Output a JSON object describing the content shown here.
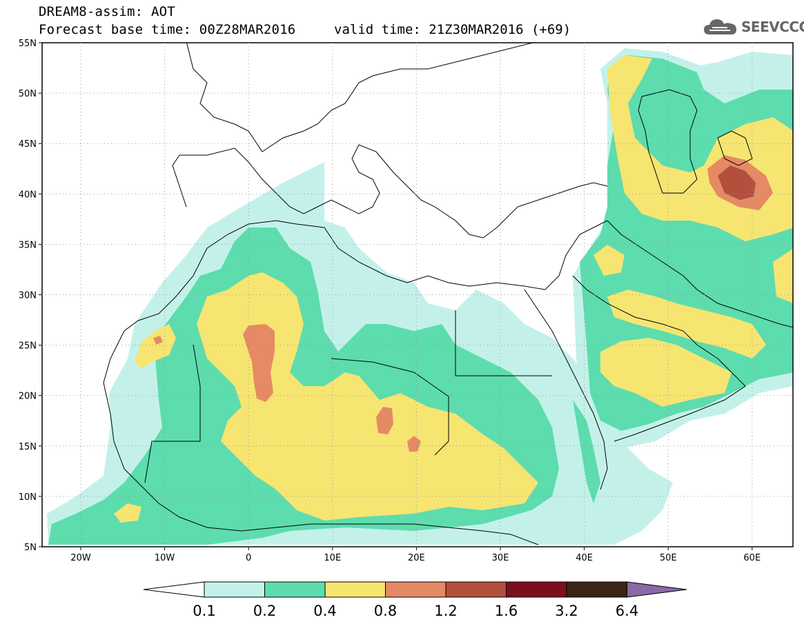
{
  "header": {
    "title_line1": "DREAM8-assim: AOT",
    "title_line2": "Forecast base time: 00Z28MAR2016",
    "valid_time": "valid time: 21Z30MAR2016 (+69)"
  },
  "logo": {
    "text": "SEEVCCC",
    "icon": "cloud-icon"
  },
  "map": {
    "lat_labels": [
      "55N",
      "50N",
      "45N",
      "40N",
      "35N",
      "30N",
      "25N",
      "20N",
      "15N",
      "10N",
      "5N"
    ],
    "lon_labels": [
      "20W",
      "10W",
      "0",
      "10E",
      "20E",
      "30E",
      "40E",
      "50E",
      "60E"
    ]
  },
  "colorbar": {
    "labels": [
      "0.1",
      "0.2",
      "0.4",
      "0.8",
      "1.2",
      "1.6",
      "3.2",
      "6.4"
    ],
    "colors": [
      "#c3f1ea",
      "#5ddcae",
      "#f6e571",
      "#e58a64",
      "#b34f3d",
      "#7c0f1f",
      "#3c2416",
      "#8a69a7"
    ]
  }
}
